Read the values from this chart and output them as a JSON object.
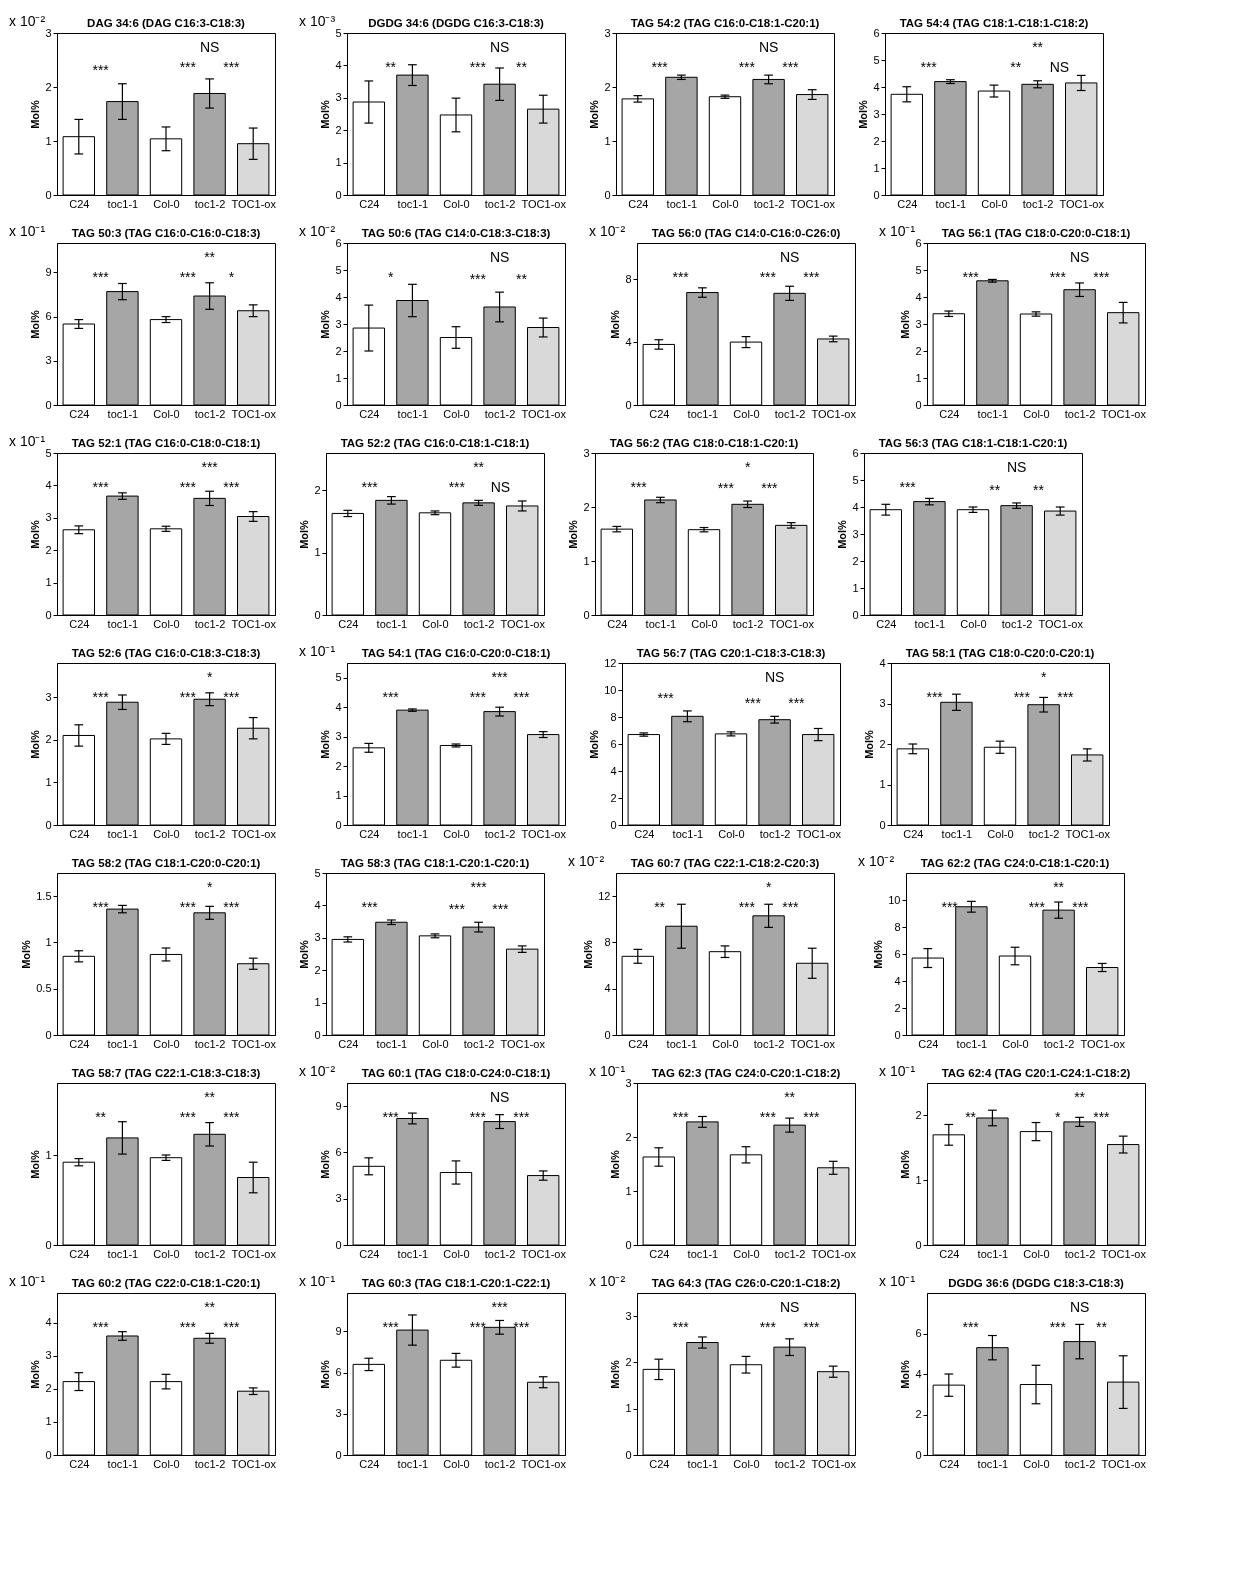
{
  "chart_data": [
    {
      "type": "bar",
      "title": "DAG 34:6 (DAG C16:3-C18:3)",
      "subtitle": "x 10⁻²",
      "ylabel": "Mol%",
      "categories": [
        "C24",
        "toc1-1",
        "Col-0",
        "toc1-2",
        "TOC1-ox"
      ],
      "values": [
        1.08,
        1.73,
        1.04,
        1.88,
        0.95
      ],
      "errors": [
        0.32,
        0.33,
        0.22,
        0.27,
        0.29
      ],
      "colors": [
        "#ffffff",
        "#a6a6a6",
        "#ffffff",
        "#a6a6a6",
        "#d9d9d9"
      ],
      "ylim": [
        0,
        3
      ],
      "yticks": [
        0,
        1,
        2,
        3
      ],
      "annotations": [
        "***",
        "***",
        "***",
        "NS"
      ]
    },
    {
      "type": "bar",
      "title": "DGDG 34:6 (DGDG C16:3-C18:3)",
      "subtitle": "x 10⁻³",
      "ylabel": "Mol%",
      "categories": [
        "C24",
        "toc1-1",
        "Col-0",
        "toc1-2",
        "TOC1-ox"
      ],
      "values": [
        2.87,
        3.7,
        2.47,
        3.42,
        2.65
      ],
      "errors": [
        0.65,
        0.32,
        0.52,
        0.5,
        0.43
      ],
      "colors": [
        "#ffffff",
        "#a6a6a6",
        "#ffffff",
        "#a6a6a6",
        "#d9d9d9"
      ],
      "ylim": [
        0,
        5
      ],
      "yticks": [
        0,
        1,
        2,
        3,
        4,
        5
      ],
      "annotations": [
        "**",
        "***",
        "**",
        "NS"
      ]
    },
    {
      "type": "bar",
      "title": "TAG 54:2 (TAG C16:0-C18:1-C20:1)",
      "ylabel": "Mol%",
      "categories": [
        "C24",
        "toc1-1",
        "Col-0",
        "toc1-2",
        "TOC1-ox"
      ],
      "values": [
        1.78,
        2.18,
        1.82,
        2.14,
        1.86
      ],
      "errors": [
        0.06,
        0.04,
        0.03,
        0.08,
        0.09
      ],
      "colors": [
        "#ffffff",
        "#a6a6a6",
        "#ffffff",
        "#a6a6a6",
        "#d9d9d9"
      ],
      "ylim": [
        0,
        3
      ],
      "yticks": [
        0,
        1,
        2,
        3
      ],
      "annotations": [
        "***",
        "***",
        "***",
        "NS"
      ]
    },
    {
      "type": "bar",
      "title": "TAG 54:4 (TAG C18:1-C18:1-C18:2)",
      "ylabel": "Mol%",
      "categories": [
        "C24",
        "toc1-1",
        "Col-0",
        "toc1-2",
        "TOC1-ox"
      ],
      "values": [
        3.73,
        4.2,
        3.85,
        4.1,
        4.15
      ],
      "errors": [
        0.28,
        0.07,
        0.22,
        0.13,
        0.28
      ],
      "colors": [
        "#ffffff",
        "#a6a6a6",
        "#ffffff",
        "#a6a6a6",
        "#d9d9d9"
      ],
      "ylim": [
        0,
        6
      ],
      "yticks": [
        0,
        1,
        2,
        3,
        4,
        5,
        6
      ],
      "annotations": [
        "***",
        "**",
        "NS",
        "**"
      ]
    },
    {
      "type": "bar",
      "title": "TAG 50:3 (TAG C16:0-C16:0-C18:3)",
      "subtitle": "x 10⁻¹",
      "ylabel": "Mol%",
      "categories": [
        "C24",
        "toc1-1",
        "Col-0",
        "toc1-2",
        "TOC1-ox"
      ],
      "values": [
        5.5,
        7.7,
        5.8,
        7.4,
        6.4
      ],
      "errors": [
        0.3,
        0.55,
        0.2,
        0.9,
        0.4
      ],
      "colors": [
        "#ffffff",
        "#a6a6a6",
        "#ffffff",
        "#a6a6a6",
        "#d9d9d9"
      ],
      "ylim": [
        0,
        11
      ],
      "yticks": [
        0,
        3,
        6,
        9
      ],
      "annotations": [
        "***",
        "***",
        "*",
        "**"
      ]
    },
    {
      "type": "bar",
      "title": "TAG 50:6 (TAG C14:0-C18:3-C18:3)",
      "subtitle": "x 10⁻²",
      "ylabel": "Mol%",
      "categories": [
        "C24",
        "toc1-1",
        "Col-0",
        "toc1-2",
        "TOC1-ox"
      ],
      "values": [
        2.85,
        3.87,
        2.5,
        3.63,
        2.87
      ],
      "errors": [
        0.85,
        0.6,
        0.4,
        0.55,
        0.35
      ],
      "colors": [
        "#ffffff",
        "#a6a6a6",
        "#ffffff",
        "#a6a6a6",
        "#d9d9d9"
      ],
      "ylim": [
        0,
        6
      ],
      "yticks": [
        0,
        1,
        2,
        3,
        4,
        5,
        6
      ],
      "annotations": [
        "*",
        "***",
        "**",
        "NS"
      ]
    },
    {
      "type": "bar",
      "title": "TAG 56:0 (TAG C14:0-C16:0-C26:0)",
      "subtitle": "x 10⁻²",
      "ylabel": "Mol%",
      "categories": [
        "C24",
        "toc1-1",
        "Col-0",
        "toc1-2",
        "TOC1-ox"
      ],
      "values": [
        3.85,
        7.15,
        4.0,
        7.1,
        4.2
      ],
      "errors": [
        0.3,
        0.3,
        0.35,
        0.45,
        0.18
      ],
      "colors": [
        "#ffffff",
        "#a6a6a6",
        "#ffffff",
        "#a6a6a6",
        "#d9d9d9"
      ],
      "ylim": [
        0,
        10.3
      ],
      "yticks": [
        0,
        4,
        8
      ],
      "annotations": [
        "***",
        "***",
        "***",
        "NS"
      ]
    },
    {
      "type": "bar",
      "title": "TAG 56:1 (TAG C18:0-C20:0-C18:1)",
      "subtitle": "x 10⁻¹",
      "ylabel": "Mol%",
      "categories": [
        "C24",
        "toc1-1",
        "Col-0",
        "toc1-2",
        "TOC1-ox"
      ],
      "values": [
        3.38,
        4.6,
        3.37,
        4.27,
        3.42
      ],
      "errors": [
        0.1,
        0.05,
        0.08,
        0.25,
        0.38
      ],
      "colors": [
        "#ffffff",
        "#a6a6a6",
        "#ffffff",
        "#a6a6a6",
        "#d9d9d9"
      ],
      "ylim": [
        0,
        6
      ],
      "yticks": [
        0,
        1,
        2,
        3,
        4,
        5,
        6
      ],
      "annotations": [
        "***",
        "***",
        "***",
        "NS"
      ]
    },
    {
      "type": "bar",
      "title": "TAG 52:1 (TAG C16:0-C18:0-C18:1)",
      "subtitle": "x 10⁻¹",
      "ylabel": "Mol%",
      "categories": [
        "C24",
        "toc1-1",
        "Col-0",
        "toc1-2",
        "TOC1-ox"
      ],
      "values": [
        2.63,
        3.67,
        2.66,
        3.6,
        3.04
      ],
      "errors": [
        0.12,
        0.1,
        0.08,
        0.22,
        0.15
      ],
      "colors": [
        "#ffffff",
        "#a6a6a6",
        "#ffffff",
        "#a6a6a6",
        "#d9d9d9"
      ],
      "ylim": [
        0,
        5
      ],
      "yticks": [
        0,
        1,
        2,
        3,
        4,
        5
      ],
      "annotations": [
        "***",
        "***",
        "***",
        "***"
      ]
    },
    {
      "type": "bar",
      "title": "TAG 52:2 (TAG C16:0-C18:1-C18:1)",
      "ylabel": "Mol%",
      "categories": [
        "C24",
        "toc1-1",
        "Col-0",
        "toc1-2",
        "TOC1-ox"
      ],
      "values": [
        1.63,
        1.84,
        1.64,
        1.8,
        1.75
      ],
      "errors": [
        0.05,
        0.06,
        0.03,
        0.04,
        0.08
      ],
      "colors": [
        "#ffffff",
        "#a6a6a6",
        "#ffffff",
        "#a6a6a6",
        "#d9d9d9"
      ],
      "ylim": [
        0,
        2.6
      ],
      "yticks": [
        0,
        1,
        2
      ],
      "annotations": [
        "***",
        "***",
        "NS",
        "**"
      ]
    },
    {
      "type": "bar",
      "title": "TAG 56:2 (TAG C18:0-C18:1-C20:1)",
      "ylabel": "Mol%",
      "categories": [
        "C24",
        "toc1-1",
        "Col-0",
        "toc1-2",
        "TOC1-ox"
      ],
      "values": [
        1.59,
        2.13,
        1.58,
        2.05,
        1.66
      ],
      "errors": [
        0.05,
        0.05,
        0.04,
        0.06,
        0.05
      ],
      "colors": [
        "#ffffff",
        "#a6a6a6",
        "#ffffff",
        "#a6a6a6",
        "#d9d9d9"
      ],
      "ylim": [
        0,
        3
      ],
      "yticks": [
        0,
        1,
        2,
        3
      ],
      "annotations": [
        "***",
        "***",
        "***",
        "*"
      ]
    },
    {
      "type": "bar",
      "title": "TAG 56:3 (TAG C18:1-C18:1-C20:1)",
      "ylabel": "Mol%",
      "categories": [
        "C24",
        "toc1-1",
        "Col-0",
        "toc1-2",
        "TOC1-ox"
      ],
      "values": [
        3.9,
        4.2,
        3.9,
        4.05,
        3.85
      ],
      "errors": [
        0.2,
        0.12,
        0.1,
        0.1,
        0.15
      ],
      "colors": [
        "#ffffff",
        "#a6a6a6",
        "#ffffff",
        "#a6a6a6",
        "#d9d9d9"
      ],
      "ylim": [
        0,
        6
      ],
      "yticks": [
        0,
        1,
        2,
        3,
        4,
        5,
        6
      ],
      "annotations": [
        "***",
        "**",
        "**",
        "NS"
      ]
    },
    {
      "type": "bar",
      "title": "TAG 52:6 (TAG C16:0-C18:3-C18:3)",
      "ylabel": "Mol%",
      "categories": [
        "C24",
        "toc1-1",
        "Col-0",
        "toc1-2",
        "TOC1-ox"
      ],
      "values": [
        2.1,
        2.88,
        2.02,
        2.95,
        2.27
      ],
      "errors": [
        0.25,
        0.17,
        0.13,
        0.15,
        0.25
      ],
      "colors": [
        "#ffffff",
        "#a6a6a6",
        "#ffffff",
        "#a6a6a6",
        "#d9d9d9"
      ],
      "ylim": [
        0,
        3.8
      ],
      "yticks": [
        0,
        1,
        2,
        3
      ],
      "annotations": [
        "***",
        "***",
        "***",
        "*"
      ]
    },
    {
      "type": "bar",
      "title": "TAG 54:1 (TAG C16:0-C20:0-C18:1)",
      "subtitle": "x 10⁻¹",
      "ylabel": "Mol%",
      "categories": [
        "C24",
        "toc1-1",
        "Col-0",
        "toc1-2",
        "TOC1-ox"
      ],
      "values": [
        2.62,
        3.9,
        2.7,
        3.85,
        3.07
      ],
      "errors": [
        0.15,
        0.04,
        0.05,
        0.15,
        0.1
      ],
      "colors": [
        "#ffffff",
        "#a6a6a6",
        "#ffffff",
        "#a6a6a6",
        "#d9d9d9"
      ],
      "ylim": [
        0,
        5.5
      ],
      "yticks": [
        0,
        1,
        2,
        3,
        4,
        5
      ],
      "annotations": [
        "***",
        "***",
        "***",
        "***"
      ]
    },
    {
      "type": "bar",
      "title": "TAG 56:7 (TAG C20:1-C18:3-C18:3)",
      "ylabel": "Mol%",
      "categories": [
        "C24",
        "toc1-1",
        "Col-0",
        "toc1-2",
        "TOC1-ox"
      ],
      "values": [
        6.7,
        8.05,
        6.75,
        7.8,
        6.7
      ],
      "errors": [
        0.12,
        0.4,
        0.15,
        0.25,
        0.45
      ],
      "colors": [
        "#ffffff",
        "#a6a6a6",
        "#ffffff",
        "#a6a6a6",
        "#d9d9d9"
      ],
      "ylim": [
        0,
        12
      ],
      "yticks": [
        0,
        2,
        4,
        6,
        8,
        10,
        12
      ],
      "annotations": [
        "***",
        "***",
        "***",
        "NS"
      ]
    },
    {
      "type": "bar",
      "title": "TAG 58:1 (TAG C18:0-C20:0-C20:1)",
      "ylabel": "Mol%",
      "categories": [
        "C24",
        "toc1-1",
        "Col-0",
        "toc1-2",
        "TOC1-ox"
      ],
      "values": [
        1.88,
        3.03,
        1.92,
        2.97,
        1.73
      ],
      "errors": [
        0.12,
        0.2,
        0.15,
        0.18,
        0.15
      ],
      "colors": [
        "#ffffff",
        "#a6a6a6",
        "#ffffff",
        "#a6a6a6",
        "#d9d9d9"
      ],
      "ylim": [
        0,
        4
      ],
      "yticks": [
        0,
        1,
        2,
        3,
        4
      ],
      "annotations": [
        "***",
        "***",
        "***",
        "*"
      ]
    },
    {
      "type": "bar",
      "title": "TAG 58:2 (TAG C18:1-C20:0-C20:1)",
      "ylabel": "Mol%",
      "categories": [
        "C24",
        "toc1-1",
        "Col-0",
        "toc1-2",
        "TOC1-ox"
      ],
      "values": [
        0.85,
        1.36,
        0.87,
        1.32,
        0.77
      ],
      "errors": [
        0.06,
        0.04,
        0.07,
        0.07,
        0.06
      ],
      "colors": [
        "#ffffff",
        "#a6a6a6",
        "#ffffff",
        "#a6a6a6",
        "#d9d9d9"
      ],
      "ylim": [
        0,
        1.75
      ],
      "yticks": [
        0,
        0.5,
        1,
        1.5
      ],
      "annotations": [
        "***",
        "***",
        "***",
        "*"
      ]
    },
    {
      "type": "bar",
      "title": "TAG 58:3 (TAG C18:1-C20:1-C20:1)",
      "ylabel": "Mol%",
      "categories": [
        "C24",
        "toc1-1",
        "Col-0",
        "toc1-2",
        "TOC1-ox"
      ],
      "values": [
        2.95,
        3.48,
        3.06,
        3.33,
        2.65
      ],
      "errors": [
        0.08,
        0.07,
        0.06,
        0.15,
        0.1
      ],
      "colors": [
        "#ffffff",
        "#a6a6a6",
        "#ffffff",
        "#a6a6a6",
        "#d9d9d9"
      ],
      "ylim": [
        0,
        5
      ],
      "yticks": [
        0,
        1,
        2,
        3,
        4,
        5
      ],
      "annotations": [
        "***",
        "***",
        "***",
        "***"
      ]
    },
    {
      "type": "bar",
      "title": "TAG 60:7 (TAG C22:1-C18:2-C20:3)",
      "subtitle": "x 10⁻²",
      "ylabel": "Mol%",
      "categories": [
        "C24",
        "toc1-1",
        "Col-0",
        "toc1-2",
        "TOC1-ox"
      ],
      "values": [
        6.8,
        9.4,
        7.2,
        10.3,
        6.2
      ],
      "errors": [
        0.6,
        1.9,
        0.5,
        1.0,
        1.3
      ],
      "colors": [
        "#ffffff",
        "#a6a6a6",
        "#ffffff",
        "#a6a6a6",
        "#d9d9d9"
      ],
      "ylim": [
        0,
        14
      ],
      "yticks": [
        0,
        4,
        8,
        12
      ],
      "annotations": [
        "**",
        "***",
        "***",
        "*"
      ]
    },
    {
      "type": "bar",
      "title": "TAG 62:2 (TAG C24:0-C18:1-C20:1)",
      "subtitle": "x 10⁻²",
      "ylabel": "Mol%",
      "categories": [
        "C24",
        "toc1-1",
        "Col-0",
        "toc1-2",
        "TOC1-ox"
      ],
      "values": [
        5.7,
        9.5,
        5.85,
        9.25,
        5.0
      ],
      "errors": [
        0.7,
        0.4,
        0.65,
        0.6,
        0.3
      ],
      "colors": [
        "#ffffff",
        "#a6a6a6",
        "#ffffff",
        "#a6a6a6",
        "#d9d9d9"
      ],
      "ylim": [
        0,
        12
      ],
      "yticks": [
        0,
        2,
        4,
        6,
        8,
        10
      ],
      "annotations": [
        "***",
        "***",
        "***",
        "**"
      ]
    },
    {
      "type": "bar",
      "title": "TAG 58:7 (TAG C22:1-C18:3-C18:3)",
      "ylabel": "Mol%",
      "categories": [
        "C24",
        "toc1-1",
        "Col-0",
        "toc1-2",
        "TOC1-ox"
      ],
      "values": [
        0.92,
        1.19,
        0.97,
        1.23,
        0.75
      ],
      "errors": [
        0.04,
        0.18,
        0.03,
        0.13,
        0.17
      ],
      "colors": [
        "#ffffff",
        "#a6a6a6",
        "#ffffff",
        "#a6a6a6",
        "#d9d9d9"
      ],
      "ylim": [
        0,
        1.8
      ],
      "yticks": [
        0,
        1
      ],
      "annotations": [
        "**",
        "***",
        "***",
        "**"
      ]
    },
    {
      "type": "bar",
      "title": "TAG 60:1 (TAG C18:0-C24:0-C18:1)",
      "subtitle": "x 10⁻²",
      "ylabel": "Mol%",
      "categories": [
        "C24",
        "toc1-1",
        "Col-0",
        "toc1-2",
        "TOC1-ox"
      ],
      "values": [
        5.1,
        8.2,
        4.7,
        8.0,
        4.5
      ],
      "errors": [
        0.55,
        0.35,
        0.75,
        0.45,
        0.3
      ],
      "colors": [
        "#ffffff",
        "#a6a6a6",
        "#ffffff",
        "#a6a6a6",
        "#d9d9d9"
      ],
      "ylim": [
        0,
        10.5
      ],
      "yticks": [
        0,
        3,
        6,
        9
      ],
      "annotations": [
        "***",
        "***",
        "***",
        "NS"
      ]
    },
    {
      "type": "bar",
      "title": "TAG 62:3 (TAG C24:0-C20:1-C18:2)",
      "subtitle": "x 10⁻¹",
      "ylabel": "Mol%",
      "categories": [
        "C24",
        "toc1-1",
        "Col-0",
        "toc1-2",
        "TOC1-ox"
      ],
      "values": [
        1.63,
        2.28,
        1.67,
        2.22,
        1.43
      ],
      "errors": [
        0.17,
        0.1,
        0.15,
        0.13,
        0.12
      ],
      "colors": [
        "#ffffff",
        "#a6a6a6",
        "#ffffff",
        "#a6a6a6",
        "#d9d9d9"
      ],
      "ylim": [
        0,
        3
      ],
      "yticks": [
        0,
        1,
        2,
        3
      ],
      "annotations": [
        "***",
        "***",
        "***",
        "**"
      ]
    },
    {
      "type": "bar",
      "title": "TAG 62:4 (TAG C20:1-C24:1-C18:2)",
      "subtitle": "x 10⁻¹",
      "ylabel": "Mol%",
      "categories": [
        "C24",
        "toc1-1",
        "Col-0",
        "toc1-2",
        "TOC1-ox"
      ],
      "values": [
        1.7,
        1.96,
        1.75,
        1.9,
        1.55
      ],
      "errors": [
        0.16,
        0.12,
        0.14,
        0.07,
        0.13
      ],
      "colors": [
        "#ffffff",
        "#a6a6a6",
        "#ffffff",
        "#a6a6a6",
        "#d9d9d9"
      ],
      "ylim": [
        0,
        2.5
      ],
      "yticks": [
        0,
        1,
        2
      ],
      "annotations": [
        "**",
        "*",
        "***",
        "**"
      ]
    },
    {
      "type": "bar",
      "title": "TAG 60:2 (TAG C22:0-C18:1-C20:1)",
      "subtitle": "x 10⁻¹",
      "ylabel": "Mol%",
      "categories": [
        "C24",
        "toc1-1",
        "Col-0",
        "toc1-2",
        "TOC1-ox"
      ],
      "values": [
        2.22,
        3.6,
        2.22,
        3.53,
        1.93
      ],
      "errors": [
        0.27,
        0.13,
        0.22,
        0.15,
        0.1
      ],
      "colors": [
        "#ffffff",
        "#a6a6a6",
        "#ffffff",
        "#a6a6a6",
        "#d9d9d9"
      ],
      "ylim": [
        0,
        4.9
      ],
      "yticks": [
        0,
        1,
        2,
        3,
        4
      ],
      "annotations": [
        "***",
        "***",
        "***",
        "**"
      ]
    },
    {
      "type": "bar",
      "title": "TAG 60:3 (TAG C18:1-C20:1-C22:1)",
      "subtitle": "x 10⁻¹",
      "ylabel": "Mol%",
      "categories": [
        "C24",
        "toc1-1",
        "Col-0",
        "toc1-2",
        "TOC1-ox"
      ],
      "values": [
        6.6,
        9.1,
        6.9,
        9.3,
        5.3
      ],
      "errors": [
        0.45,
        1.1,
        0.5,
        0.5,
        0.4
      ],
      "colors": [
        "#ffffff",
        "#a6a6a6",
        "#ffffff",
        "#a6a6a6",
        "#d9d9d9"
      ],
      "ylim": [
        0,
        11.8
      ],
      "yticks": [
        0,
        3,
        6,
        9
      ],
      "annotations": [
        "***",
        "***",
        "***",
        "***"
      ]
    },
    {
      "type": "bar",
      "title": "TAG 64:3 (TAG C26:0-C20:1-C18:2)",
      "subtitle": "x 10⁻²",
      "ylabel": "Mol%",
      "categories": [
        "C24",
        "toc1-1",
        "Col-0",
        "toc1-2",
        "TOC1-ox"
      ],
      "values": [
        1.85,
        2.43,
        1.95,
        2.33,
        1.8
      ],
      "errors": [
        0.22,
        0.12,
        0.18,
        0.18,
        0.12
      ],
      "colors": [
        "#ffffff",
        "#a6a6a6",
        "#ffffff",
        "#a6a6a6",
        "#d9d9d9"
      ],
      "ylim": [
        0,
        3.5
      ],
      "yticks": [
        0,
        1,
        2,
        3
      ],
      "annotations": [
        "***",
        "***",
        "***",
        "NS"
      ]
    },
    {
      "type": "bar",
      "title": "DGDG 36:6 (DGDG C18:3-C18:3)",
      "subtitle": "x 10⁻¹",
      "ylabel": "Mol%",
      "categories": [
        "C24",
        "toc1-1",
        "Col-0",
        "toc1-2",
        "TOC1-ox"
      ],
      "values": [
        3.45,
        5.3,
        3.48,
        5.6,
        3.6
      ],
      "errors": [
        0.55,
        0.6,
        0.95,
        0.85,
        1.3
      ],
      "colors": [
        "#ffffff",
        "#a6a6a6",
        "#ffffff",
        "#a6a6a6",
        "#d9d9d9"
      ],
      "ylim": [
        0,
        8
      ],
      "yticks": [
        0,
        2,
        4,
        6
      ],
      "annotations": [
        "***",
        "***",
        "**",
        "NS"
      ]
    }
  ]
}
